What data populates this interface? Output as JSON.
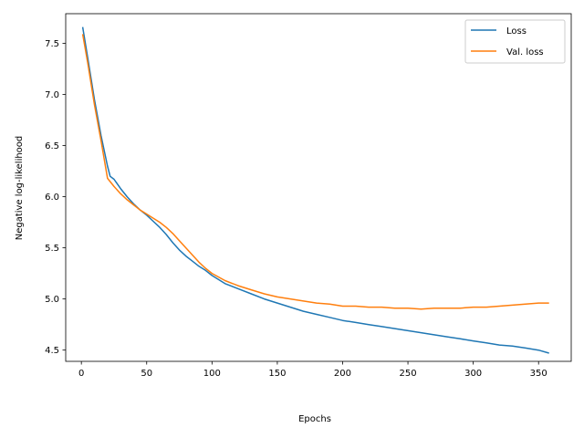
{
  "chart_data": {
    "type": "line",
    "title": "",
    "xlabel": "Epochs",
    "ylabel": "Negative log-likelihood",
    "xlim": [
      -12,
      375
    ],
    "ylim": [
      4.39,
      7.79
    ],
    "xticks": [
      0,
      50,
      100,
      150,
      200,
      250,
      300,
      350
    ],
    "xtick_labels": [
      "0",
      "50",
      "100",
      "150",
      "200",
      "250",
      "300",
      "350"
    ],
    "yticks": [
      4.5,
      5.0,
      5.5,
      6.0,
      6.5,
      7.0,
      7.5
    ],
    "ytick_labels": [
      "4.5",
      "5.0",
      "5.5",
      "6.0",
      "6.5",
      "7.0",
      "7.5"
    ],
    "grid": false,
    "legend_position": "top-right",
    "series": [
      {
        "name": "Loss",
        "color": "#1f77b4",
        "points": [
          [
            1,
            7.66
          ],
          [
            5,
            7.35
          ],
          [
            10,
            6.95
          ],
          [
            15,
            6.6
          ],
          [
            20,
            6.3
          ],
          [
            22,
            6.2
          ],
          [
            25,
            6.17
          ],
          [
            30,
            6.08
          ],
          [
            35,
            6.0
          ],
          [
            40,
            5.93
          ],
          [
            45,
            5.87
          ],
          [
            50,
            5.82
          ],
          [
            55,
            5.76
          ],
          [
            60,
            5.7
          ],
          [
            65,
            5.63
          ],
          [
            70,
            5.55
          ],
          [
            75,
            5.48
          ],
          [
            80,
            5.42
          ],
          [
            85,
            5.37
          ],
          [
            90,
            5.32
          ],
          [
            95,
            5.28
          ],
          [
            100,
            5.23
          ],
          [
            110,
            5.15
          ],
          [
            120,
            5.1
          ],
          [
            130,
            5.05
          ],
          [
            140,
            5.0
          ],
          [
            150,
            4.96
          ],
          [
            160,
            4.92
          ],
          [
            170,
            4.88
          ],
          [
            180,
            4.85
          ],
          [
            190,
            4.82
          ],
          [
            200,
            4.79
          ],
          [
            210,
            4.77
          ],
          [
            220,
            4.75
          ],
          [
            230,
            4.73
          ],
          [
            240,
            4.71
          ],
          [
            250,
            4.69
          ],
          [
            260,
            4.67
          ],
          [
            270,
            4.65
          ],
          [
            280,
            4.63
          ],
          [
            290,
            4.61
          ],
          [
            300,
            4.59
          ],
          [
            310,
            4.57
          ],
          [
            320,
            4.55
          ],
          [
            330,
            4.54
          ],
          [
            340,
            4.52
          ],
          [
            350,
            4.5
          ],
          [
            358,
            4.47
          ]
        ]
      },
      {
        "name": "Val. loss",
        "color": "#ff7f0e",
        "points": [
          [
            1,
            7.59
          ],
          [
            5,
            7.3
          ],
          [
            10,
            6.9
          ],
          [
            15,
            6.55
          ],
          [
            20,
            6.18
          ],
          [
            25,
            6.1
          ],
          [
            30,
            6.03
          ],
          [
            35,
            5.97
          ],
          [
            40,
            5.92
          ],
          [
            45,
            5.87
          ],
          [
            50,
            5.83
          ],
          [
            55,
            5.79
          ],
          [
            60,
            5.75
          ],
          [
            65,
            5.7
          ],
          [
            70,
            5.64
          ],
          [
            75,
            5.57
          ],
          [
            80,
            5.5
          ],
          [
            85,
            5.43
          ],
          [
            90,
            5.36
          ],
          [
            95,
            5.3
          ],
          [
            100,
            5.25
          ],
          [
            110,
            5.18
          ],
          [
            120,
            5.13
          ],
          [
            130,
            5.09
          ],
          [
            140,
            5.05
          ],
          [
            150,
            5.02
          ],
          [
            160,
            5.0
          ],
          [
            170,
            4.98
          ],
          [
            180,
            4.96
          ],
          [
            190,
            4.95
          ],
          [
            200,
            4.93
          ],
          [
            210,
            4.93
          ],
          [
            220,
            4.92
          ],
          [
            230,
            4.92
          ],
          [
            240,
            4.91
          ],
          [
            250,
            4.91
          ],
          [
            260,
            4.9
          ],
          [
            270,
            4.91
          ],
          [
            280,
            4.91
          ],
          [
            290,
            4.91
          ],
          [
            300,
            4.92
          ],
          [
            310,
            4.92
          ],
          [
            320,
            4.93
          ],
          [
            330,
            4.94
          ],
          [
            340,
            4.95
          ],
          [
            350,
            4.96
          ],
          [
            358,
            4.96
          ]
        ]
      }
    ]
  }
}
